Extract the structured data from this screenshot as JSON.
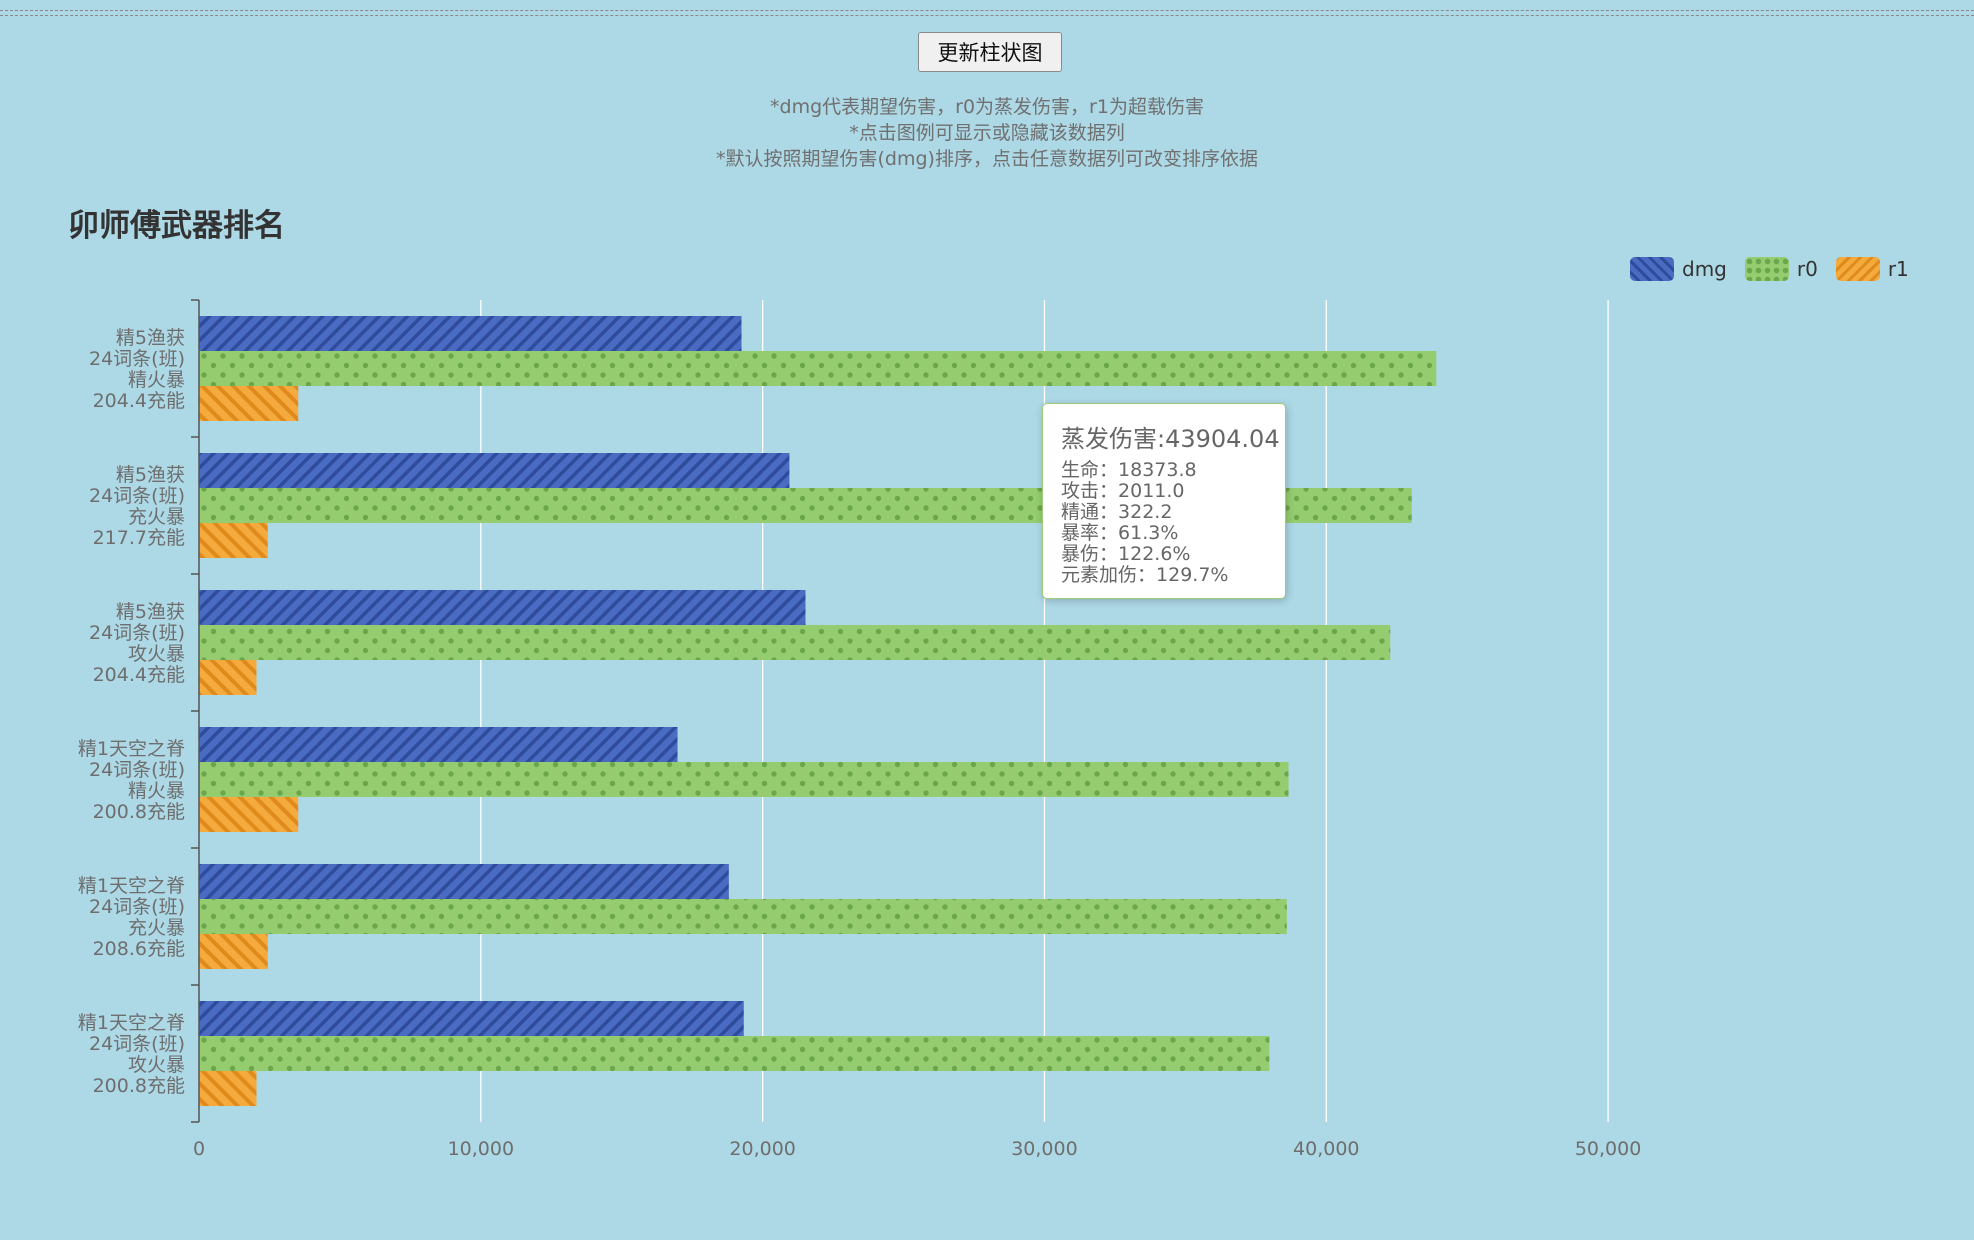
{
  "controls": {
    "update_button": "更新柱状图"
  },
  "notes": [
    "*dmg代表期望伤害，r0为蒸发伤害，r1为超载伤害",
    "*点击图例可显示或隐藏该数据列",
    "*默认按照期望伤害(dmg)排序，点击任意数据列可改变排序依据"
  ],
  "colors": {
    "background": "#add8e6",
    "dmg": "#4a6bc2",
    "r0": "#95cc6f",
    "r1": "#f4aa3c"
  },
  "icons": {
    "dmg": "diagonal-stripe-swatch",
    "r0": "dot-pattern-swatch",
    "r1": "diagonal-stripe-swatch"
  },
  "tooltip": {
    "title": "蒸发伤害:43904.04",
    "rows": [
      {
        "label": "生命：",
        "value": "18373.8"
      },
      {
        "label": "攻击：",
        "value": "2011.0"
      },
      {
        "label": "精通：",
        "value": "322.2"
      },
      {
        "label": "暴率：",
        "value": "61.3%"
      },
      {
        "label": "暴伤：",
        "value": "122.6%"
      },
      {
        "label": "元素加伤：",
        "value": "129.7%"
      }
    ]
  },
  "chart_data": {
    "type": "bar",
    "orientation": "horizontal",
    "title": "卯师傅武器排名",
    "legend_position": "top-right",
    "grid": "vertical",
    "xlim": [
      0,
      55000
    ],
    "x_ticks": [
      0,
      10000,
      20000,
      30000,
      40000,
      50000
    ],
    "x_tick_labels": [
      "0",
      "10,000",
      "20,000",
      "30,000",
      "40,000",
      "50,000"
    ],
    "categories": [
      [
        "精5渔获",
        "24词条(班)",
        "精火暴",
        "204.4充能"
      ],
      [
        "精5渔获",
        "24词条(班)",
        "充火暴",
        "217.7充能"
      ],
      [
        "精5渔获",
        "24词条(班)",
        "攻火暴",
        "204.4充能"
      ],
      [
        "精1天空之脊",
        "24词条(班)",
        "精火暴",
        "200.8充能"
      ],
      [
        "精1天空之脊",
        "24词条(班)",
        "充火暴",
        "208.6充能"
      ],
      [
        "精1天空之脊",
        "24词条(班)",
        "攻火暴",
        "200.8充能"
      ]
    ],
    "series": [
      {
        "name": "dmg",
        "values": [
          19250,
          20950,
          21520,
          16980,
          18800,
          19330
        ]
      },
      {
        "name": "r0",
        "values": [
          43904.04,
          43030,
          42270,
          38660,
          38600,
          37980
        ]
      },
      {
        "name": "r1",
        "values": [
          3520,
          2440,
          2040,
          3520,
          2440,
          2040
        ]
      }
    ]
  }
}
